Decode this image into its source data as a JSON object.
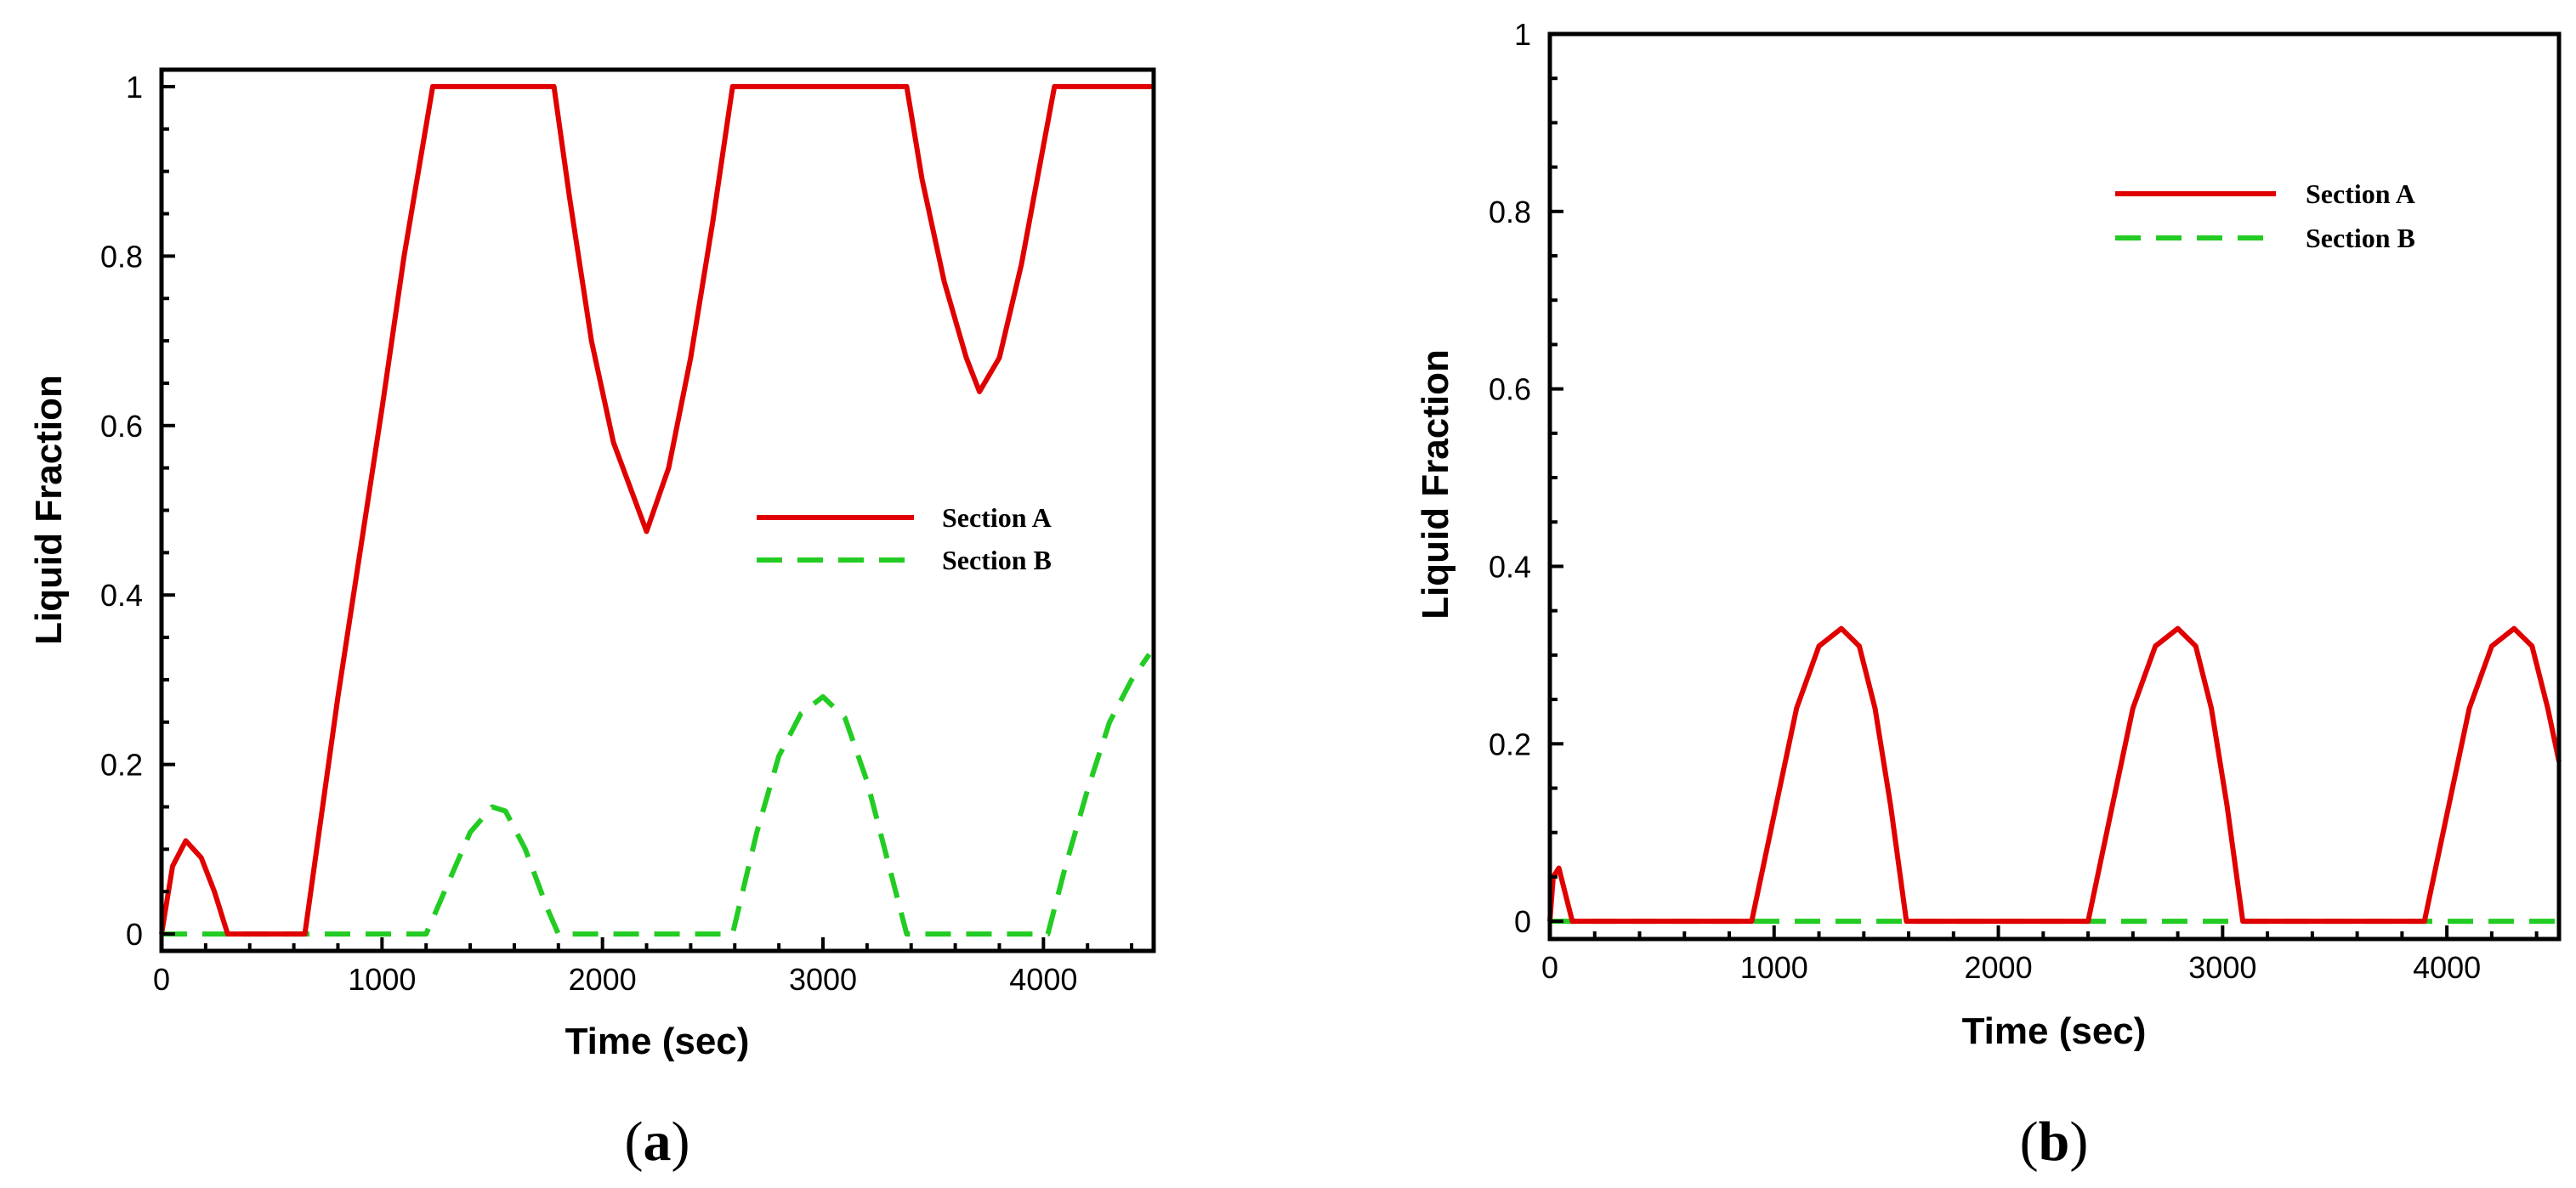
{
  "chart_data": [
    {
      "type": "line",
      "panel_label": "a",
      "xlabel": "Time (sec)",
      "ylabel": "Liquid Fraction",
      "xlim": [
        0,
        4500
      ],
      "ylim": [
        -0.02,
        1.02
      ],
      "xticks": [
        0,
        1000,
        2000,
        3000,
        4000
      ],
      "xtick_labels": [
        "0",
        "1000",
        "2000",
        "3000",
        "4000"
      ],
      "yticks": [
        0,
        0.2,
        0.4,
        0.6,
        0.8,
        1
      ],
      "ytick_labels": [
        "0",
        "0.2",
        "0.4",
        "0.6",
        "0.8",
        "1"
      ],
      "legend_position": "center-right",
      "series": [
        {
          "name": "Section A",
          "color": "#e00000",
          "style": "solid",
          "x": [
            0,
            50,
            110,
            180,
            240,
            300,
            650,
            800,
            1000,
            1100,
            1230,
            1780,
            1850,
            1950,
            2050,
            2200,
            2300,
            2400,
            2500,
            2590,
            3380,
            3450,
            3550,
            3650,
            3710,
            3800,
            3900,
            4000,
            4050,
            4500
          ],
          "y": [
            0,
            0.08,
            0.11,
            0.09,
            0.05,
            0,
            0,
            0.28,
            0.62,
            0.8,
            1,
            1,
            0.87,
            0.7,
            0.58,
            0.475,
            0.55,
            0.68,
            0.84,
            1,
            1,
            0.89,
            0.77,
            0.68,
            0.64,
            0.68,
            0.79,
            0.93,
            1,
            1
          ]
        },
        {
          "name": "Section B",
          "color": "#22cc22",
          "style": "dashed",
          "x": [
            0,
            1200,
            1300,
            1400,
            1500,
            1560,
            1650,
            1750,
            1800,
            2590,
            2700,
            2800,
            2900,
            3000,
            3100,
            3200,
            3300,
            3380,
            4020,
            4100,
            4200,
            4300,
            4400,
            4480
          ],
          "y": [
            0,
            0,
            0.06,
            0.12,
            0.15,
            0.145,
            0.1,
            0.03,
            0,
            0,
            0.12,
            0.21,
            0.26,
            0.28,
            0.255,
            0.18,
            0.08,
            0,
            0,
            0.08,
            0.17,
            0.25,
            0.3,
            0.33
          ]
        }
      ]
    },
    {
      "type": "line",
      "panel_label": "b",
      "xlabel": "Time (sec)",
      "ylabel": "Liquid Fraction",
      "xlim": [
        0,
        4500
      ],
      "ylim": [
        -0.02,
        1
      ],
      "xticks": [
        0,
        1000,
        2000,
        3000,
        4000
      ],
      "xtick_labels": [
        "0",
        "1000",
        "2000",
        "3000",
        "4000"
      ],
      "yticks": [
        0,
        0.2,
        0.4,
        0.6,
        0.8,
        1
      ],
      "ytick_labels": [
        "0",
        "0.2",
        "0.4",
        "0.6",
        "0.8",
        "1"
      ],
      "legend_position": "top-right",
      "series": [
        {
          "name": "Section A",
          "color": "#e00000",
          "style": "solid",
          "x": [
            0,
            15,
            40,
            70,
            100,
            900,
            1000,
            1100,
            1200,
            1300,
            1380,
            1450,
            1520,
            1590,
            2400,
            2500,
            2600,
            2700,
            2800,
            2880,
            2950,
            3020,
            3090,
            3900,
            4000,
            4100,
            4200,
            4300,
            4380,
            4450,
            4500
          ],
          "y": [
            0,
            0.05,
            0.06,
            0.03,
            0,
            0,
            0.12,
            0.24,
            0.31,
            0.33,
            0.31,
            0.24,
            0.13,
            0,
            0,
            0.12,
            0.24,
            0.31,
            0.33,
            0.31,
            0.24,
            0.13,
            0,
            0,
            0.12,
            0.24,
            0.31,
            0.33,
            0.31,
            0.24,
            0.18
          ]
        },
        {
          "name": "Section B",
          "color": "#22cc22",
          "style": "dashed",
          "x": [
            0,
            4500
          ],
          "y": [
            0,
            0
          ]
        }
      ]
    }
  ]
}
